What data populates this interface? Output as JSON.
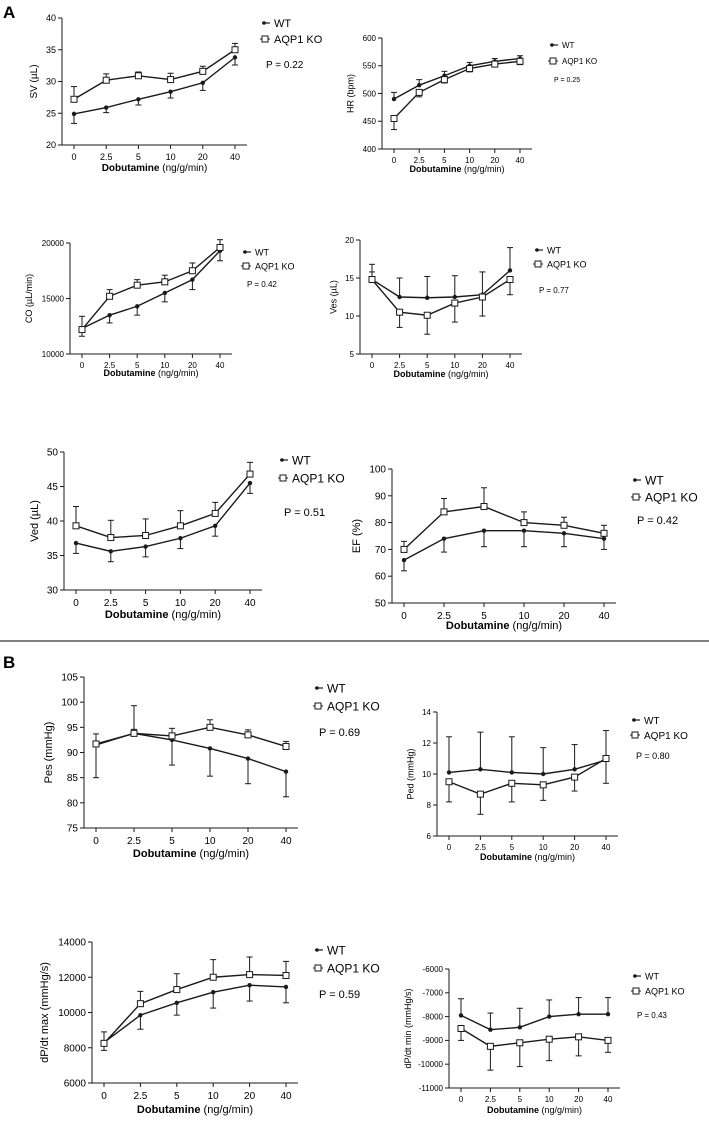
{
  "panels": [
    {
      "label": "A"
    },
    {
      "label": "B"
    }
  ],
  "styles": {
    "line_color": "#1a1a1a",
    "background": "#ffffff"
  },
  "chart_data": [
    {
      "id": "sv",
      "type": "line",
      "title": "",
      "xlabel_bold": "Dobutamine",
      "xlabel_unit": " (ng/g/min)",
      "ylabel": "SV (µL)",
      "categories": [
        "0",
        "2.5",
        "5",
        "10",
        "20",
        "40"
      ],
      "ylim": [
        20,
        40
      ],
      "yticks": [
        20,
        25,
        30,
        35,
        40
      ],
      "legend": {
        "wt": "WT",
        "ko": "AQP1 KO",
        "position": "top-right"
      },
      "p_value": "P = 0.22",
      "series": [
        {
          "name": "WT",
          "marker": "dot",
          "values": [
            24.9,
            25.9,
            27.2,
            28.4,
            29.8,
            33.8
          ],
          "err": [
            1.5,
            0.8,
            0.9,
            1.0,
            1.2,
            1.2
          ]
        },
        {
          "name": "AQP1 KO",
          "marker": "square",
          "values": [
            27.2,
            30.2,
            30.9,
            30.3,
            31.6,
            35.0
          ],
          "err": [
            2.0,
            1.0,
            0.6,
            1.0,
            0.8,
            1.0
          ]
        }
      ]
    },
    {
      "id": "hr",
      "type": "line",
      "title": "",
      "xlabel_bold": "Dobutamine",
      "xlabel_unit": " (ng/g/min)",
      "ylabel": "HR (bpm)",
      "categories": [
        "0",
        "2.5",
        "5",
        "10",
        "20",
        "40"
      ],
      "ylim": [
        400,
        600
      ],
      "yticks": [
        400,
        450,
        500,
        550,
        600
      ],
      "legend": {
        "wt": "WT",
        "ko": "AQP1 KO",
        "position": "top-right"
      },
      "p_value": "P = 0.25",
      "series": [
        {
          "name": "WT",
          "marker": "dot",
          "values": [
            490,
            515,
            532,
            550,
            558,
            563
          ],
          "err": [
            12,
            10,
            8,
            6,
            5,
            5
          ]
        },
        {
          "name": "AQP1 KO",
          "marker": "square",
          "values": [
            455,
            502,
            525,
            545,
            553,
            558
          ],
          "err": [
            20,
            8,
            6,
            6,
            5,
            6
          ]
        }
      ]
    },
    {
      "id": "co",
      "type": "line",
      "title": "",
      "xlabel_bold": "Dobutamine",
      "xlabel_unit": " (ng/g/min)",
      "ylabel": "CO (µL/min)",
      "categories": [
        "0",
        "2.5",
        "5",
        "10",
        "20",
        "40"
      ],
      "ylim": [
        10000,
        20000
      ],
      "yticks": [
        10000,
        15000,
        20000
      ],
      "legend": {
        "wt": "WT",
        "ko": "AQP1 KO",
        "position": "top-right"
      },
      "p_value": "P = 0.42",
      "series": [
        {
          "name": "WT",
          "marker": "dot",
          "values": [
            12300,
            13500,
            14300,
            15500,
            16700,
            19300
          ],
          "err": [
            1100,
            700,
            800,
            800,
            900,
            900
          ]
        },
        {
          "name": "AQP1 KO",
          "marker": "square",
          "values": [
            12200,
            15200,
            16200,
            16500,
            17500,
            19600
          ],
          "err": [
            600,
            600,
            500,
            600,
            700,
            700
          ]
        }
      ]
    },
    {
      "id": "ves",
      "type": "line",
      "title": "",
      "xlabel_bold": "Dobutamine",
      "xlabel_unit": " (ng/g/min)",
      "ylabel": "Ves (µL)",
      "categories": [
        "0",
        "2.5",
        "5",
        "10",
        "20",
        "40"
      ],
      "ylim": [
        5,
        20
      ],
      "yticks": [
        5,
        10,
        15,
        20
      ],
      "legend": {
        "wt": "WT",
        "ko": "AQP1 KO",
        "position": "top-right"
      },
      "p_value": "P = 0.77",
      "series": [
        {
          "name": "WT",
          "marker": "dot",
          "values": [
            14.8,
            12.5,
            12.4,
            12.5,
            12.8,
            16.0
          ],
          "err": [
            2.0,
            2.5,
            2.8,
            2.8,
            3.0,
            3.0
          ]
        },
        {
          "name": "AQP1 KO",
          "marker": "square",
          "values": [
            14.8,
            10.5,
            10.1,
            11.7,
            12.5,
            14.8
          ],
          "err": [
            1.0,
            2.0,
            2.5,
            2.5,
            2.5,
            2.0
          ]
        }
      ]
    },
    {
      "id": "ved",
      "type": "line",
      "title": "",
      "xlabel_bold": "Dobutamine",
      "xlabel_unit": " (ng/g/min)",
      "ylabel": "Ved (µL)",
      "categories": [
        "0",
        "2.5",
        "5",
        "10",
        "20",
        "40"
      ],
      "ylim": [
        30,
        50
      ],
      "yticks": [
        30,
        35,
        40,
        45,
        50
      ],
      "legend": {
        "wt": "WT",
        "ko": "AQP1 KO",
        "position": "top-right"
      },
      "p_value": "P = 0.51",
      "series": [
        {
          "name": "WT",
          "marker": "dot",
          "values": [
            36.8,
            35.6,
            36.3,
            37.5,
            39.3,
            45.5
          ],
          "err": [
            1.5,
            1.5,
            1.5,
            1.5,
            1.5,
            1.5
          ]
        },
        {
          "name": "AQP1 KO",
          "marker": "square",
          "values": [
            39.3,
            37.6,
            37.9,
            39.3,
            41.1,
            46.8
          ],
          "err": [
            2.8,
            2.5,
            2.4,
            2.2,
            1.6,
            1.7
          ]
        }
      ]
    },
    {
      "id": "ef",
      "type": "line",
      "title": "",
      "xlabel_bold": "Dobutamine",
      "xlabel_unit": " (ng/g/min)",
      "ylabel": "EF (%)",
      "categories": [
        "0",
        "2.5",
        "5",
        "10",
        "20",
        "40"
      ],
      "ylim": [
        50,
        100
      ],
      "yticks": [
        50,
        60,
        70,
        80,
        90,
        100
      ],
      "legend": {
        "wt": "WT",
        "ko": "AQP1 KO",
        "position": "top-right"
      },
      "p_value": "P = 0.42",
      "series": [
        {
          "name": "WT",
          "marker": "dot",
          "values": [
            66,
            74,
            77,
            77,
            76,
            74
          ],
          "err": [
            4,
            5,
            6,
            6,
            5,
            4
          ]
        },
        {
          "name": "AQP1 KO",
          "marker": "square",
          "values": [
            70,
            84,
            86,
            80,
            79,
            76
          ],
          "err": [
            3,
            5,
            7,
            4,
            3,
            3
          ]
        }
      ]
    },
    {
      "id": "pes",
      "type": "line",
      "title": "",
      "xlabel_bold": "Dobutamine",
      "xlabel_unit": " (ng/g/min)",
      "ylabel": "Pes  (mmHg)",
      "categories": [
        "0",
        "2.5",
        "5",
        "10",
        "20",
        "40"
      ],
      "ylim": [
        75,
        105
      ],
      "yticks": [
        75,
        80,
        85,
        90,
        95,
        100,
        105
      ],
      "legend": {
        "wt": "WT",
        "ko": "AQP1 KO",
        "position": "top-right"
      },
      "p_value": "P = 0.69",
      "series": [
        {
          "name": "WT",
          "marker": "dot",
          "values": [
            91.5,
            93.8,
            92.5,
            90.8,
            88.8,
            86.2
          ],
          "err": [
            6.5,
            5.5,
            5.0,
            5.5,
            5.0,
            5.0
          ]
        },
        {
          "name": "AQP1 KO",
          "marker": "square",
          "values": [
            91.7,
            93.8,
            93.3,
            95.0,
            93.5,
            91.2
          ],
          "err": [
            2.0,
            0.8,
            1.5,
            1.5,
            1.0,
            1.0
          ]
        }
      ]
    },
    {
      "id": "ped",
      "type": "line",
      "title": "",
      "xlabel_bold": "Dobutamine",
      "xlabel_unit": " (ng/g/min)",
      "ylabel": "Ped  (mmHg)",
      "categories": [
        "0",
        "2.5",
        "5",
        "10",
        "20",
        "40"
      ],
      "ylim": [
        6,
        14
      ],
      "yticks": [
        6,
        8,
        10,
        12,
        14
      ],
      "legend": {
        "wt": "WT",
        "ko": "AQP1 KO",
        "position": "top-right"
      },
      "p_value": "P = 0.80",
      "series": [
        {
          "name": "WT",
          "marker": "dot",
          "values": [
            10.1,
            10.3,
            10.1,
            10.0,
            10.3,
            10.9
          ],
          "err": [
            2.3,
            2.4,
            2.3,
            1.7,
            1.6,
            1.5
          ]
        },
        {
          "name": "AQP1 KO",
          "marker": "square",
          "values": [
            9.5,
            8.7,
            9.4,
            9.3,
            9.8,
            11.0
          ],
          "err": [
            1.3,
            1.3,
            1.2,
            1.0,
            0.9,
            1.8
          ]
        }
      ]
    },
    {
      "id": "dpdtmax",
      "type": "line",
      "title": "",
      "xlabel_bold": "Dobutamine",
      "xlabel_unit": " (ng/g/min)",
      "ylabel": "dP/dt max (mmHg/s)",
      "categories": [
        "0",
        "2.5",
        "5",
        "10",
        "20",
        "40"
      ],
      "ylim": [
        6000,
        14000
      ],
      "yticks": [
        6000,
        8000,
        10000,
        12000,
        14000
      ],
      "legend": {
        "wt": "WT",
        "ko": "AQP1 KO",
        "position": "top-right"
      },
      "p_value": "P = 0.59",
      "series": [
        {
          "name": "WT",
          "marker": "dot",
          "values": [
            8300,
            9850,
            10550,
            11150,
            11550,
            11450
          ],
          "err": [
            600,
            800,
            700,
            900,
            900,
            900
          ]
        },
        {
          "name": "AQP1 KO",
          "marker": "square",
          "values": [
            8250,
            10500,
            11300,
            12000,
            12150,
            12100
          ],
          "err": [
            400,
            700,
            900,
            1000,
            1000,
            800
          ]
        }
      ]
    },
    {
      "id": "dpdtmin",
      "type": "line",
      "title": "",
      "xlabel_bold": "Dobutamine",
      "xlabel_unit": " (ng/g/min)",
      "ylabel": "dP/dt min (mmHg/s)",
      "categories": [
        "0",
        "2.5",
        "5",
        "10",
        "20",
        "40"
      ],
      "ylim": [
        -11000,
        -6000
      ],
      "yticks": [
        -11000,
        -10000,
        -9000,
        -8000,
        -7000,
        -6000
      ],
      "legend": {
        "wt": "WT",
        "ko": "AQP1 KO",
        "position": "top-right"
      },
      "p_value": "P = 0.43",
      "series": [
        {
          "name": "WT",
          "marker": "dot",
          "values": [
            -7950,
            -8550,
            -8450,
            -8000,
            -7900,
            -7900
          ],
          "err": [
            700,
            700,
            800,
            700,
            700,
            700
          ]
        },
        {
          "name": "AQP1 KO",
          "marker": "square",
          "values": [
            -8500,
            -9250,
            -9100,
            -8950,
            -8850,
            -9000
          ],
          "err": [
            500,
            1000,
            1000,
            900,
            800,
            500
          ]
        }
      ]
    }
  ]
}
